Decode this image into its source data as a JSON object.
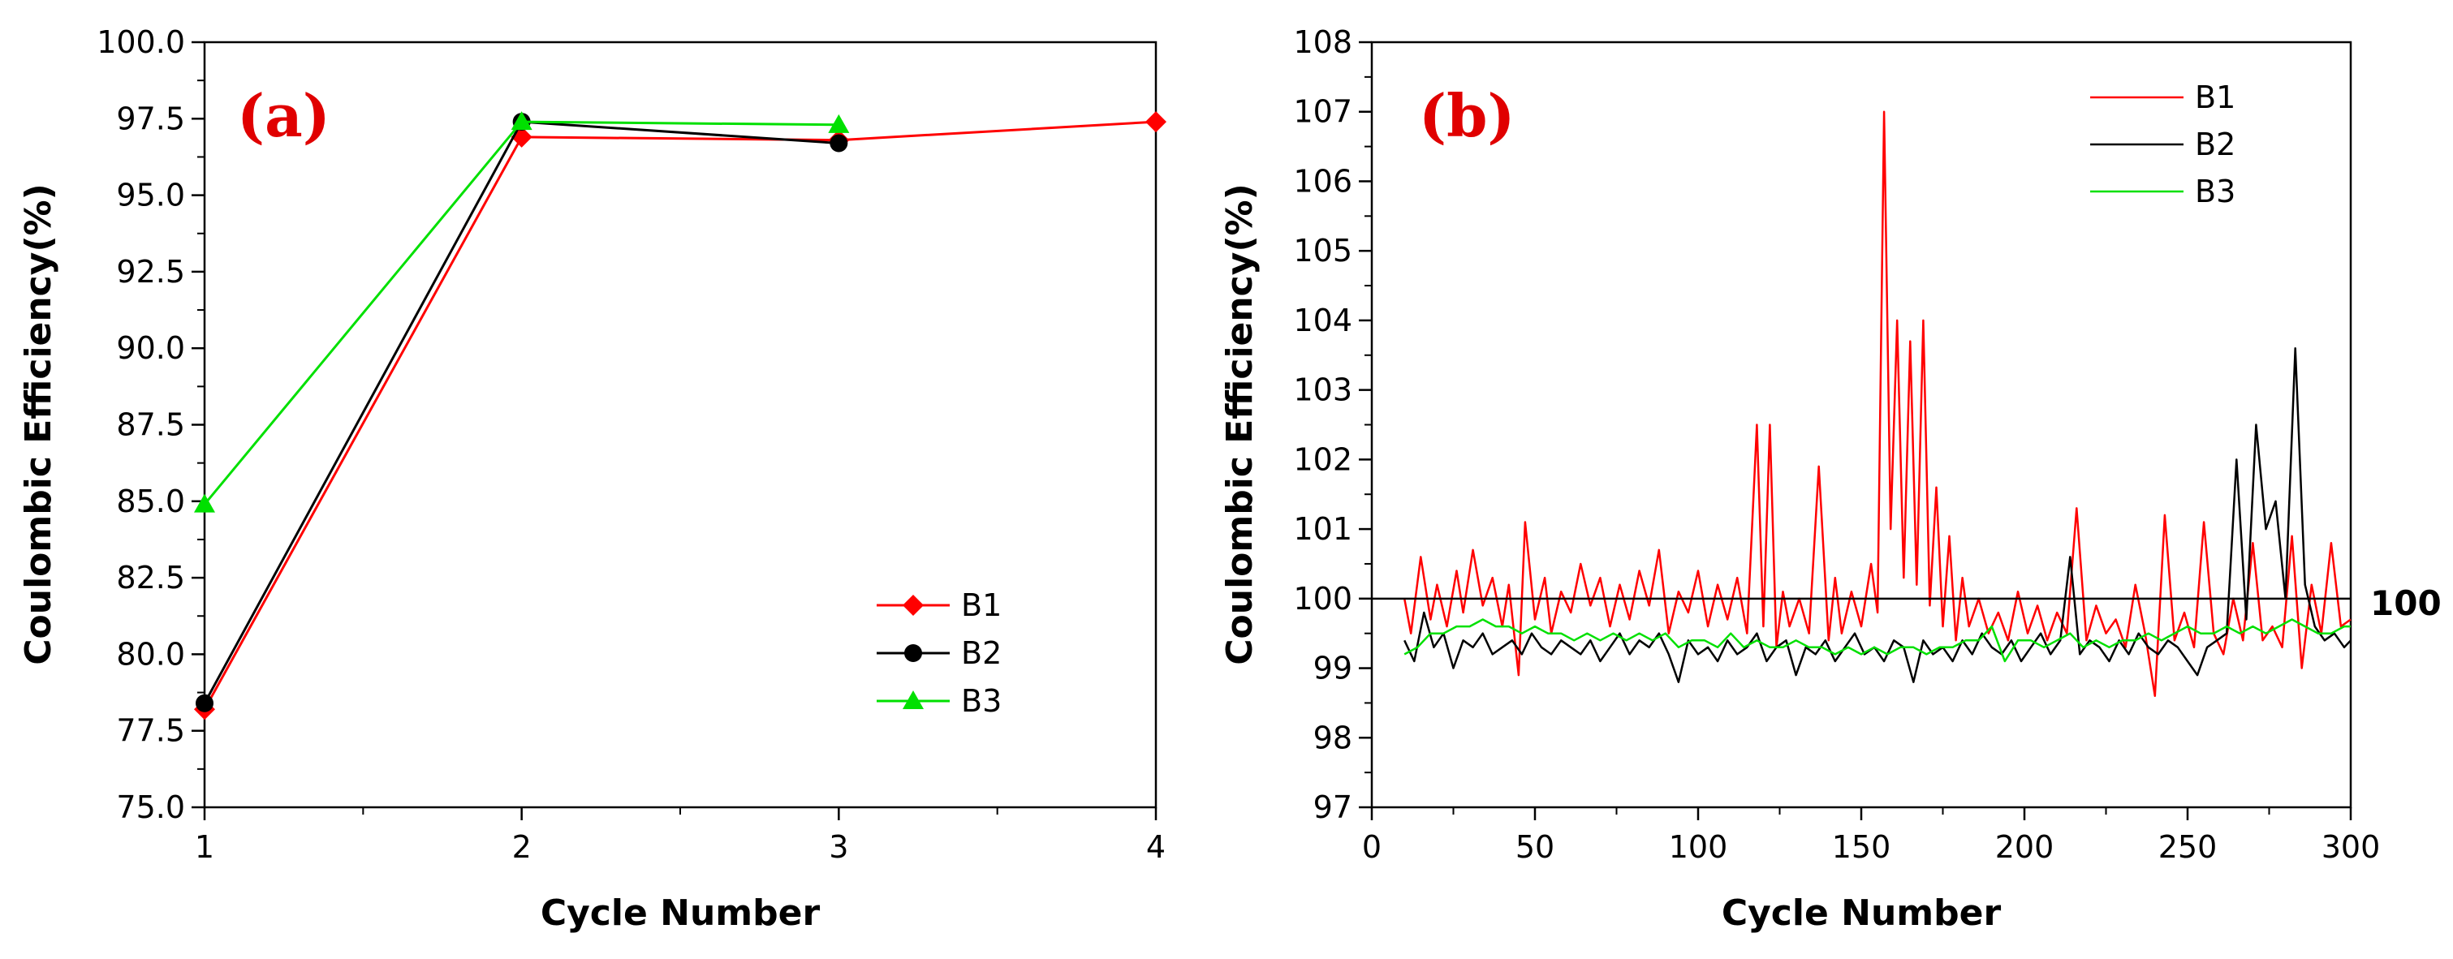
{
  "chart_data": [
    {
      "type": "line",
      "panel_label": "(a)",
      "xlabel": "Cycle Number",
      "ylabel": "Coulombic Efficiency(%)",
      "xlim": [
        1,
        4
      ],
      "ylim": [
        75,
        100
      ],
      "x_ticks": [
        "1",
        "2",
        "3",
        "4"
      ],
      "y_ticks": [
        "75.0",
        "77.5",
        "80.0",
        "82.5",
        "85.0",
        "87.5",
        "90.0",
        "92.5",
        "95.0",
        "97.5",
        "100.0"
      ],
      "grid": false,
      "legend_position": "bottom-right",
      "series": [
        {
          "name": "B1",
          "color": "#ff0000",
          "marker": "diamond",
          "x": [
            1,
            2,
            3,
            4
          ],
          "values": [
            78.2,
            96.9,
            96.8,
            97.4
          ]
        },
        {
          "name": "B2",
          "color": "#000000",
          "marker": "circle",
          "x": [
            1,
            2,
            3
          ],
          "values": [
            78.4,
            97.4,
            96.7
          ]
        },
        {
          "name": "B3",
          "color": "#00e000",
          "marker": "triangle",
          "x": [
            1,
            2,
            3
          ],
          "values": [
            84.9,
            97.4,
            97.3
          ]
        }
      ]
    },
    {
      "type": "line",
      "panel_label": "(b)",
      "xlabel": "Cycle Number",
      "ylabel": "Coulombic Efficiency(%)",
      "xlim": [
        0,
        300
      ],
      "ylim": [
        97,
        108
      ],
      "x_ticks": [
        "0",
        "50",
        "100",
        "150",
        "200",
        "250",
        "300"
      ],
      "y_ticks": [
        "97",
        "98",
        "99",
        "100",
        "101",
        "102",
        "103",
        "104",
        "105",
        "106",
        "107",
        "108"
      ],
      "grid": false,
      "legend_position": "top-right",
      "reference_line": {
        "y": 100,
        "label": "100"
      },
      "series": [
        {
          "name": "B1",
          "color": "#ff0000",
          "x": [
            10,
            12,
            15,
            18,
            20,
            23,
            26,
            28,
            31,
            34,
            37,
            40,
            42,
            45,
            47,
            50,
            53,
            55,
            58,
            61,
            64,
            67,
            70,
            73,
            76,
            79,
            82,
            85,
            88,
            91,
            94,
            97,
            100,
            103,
            106,
            109,
            112,
            115,
            118,
            120,
            122,
            124,
            126,
            128,
            131,
            134,
            137,
            140,
            142,
            144,
            147,
            150,
            153,
            155,
            157,
            159,
            161,
            163,
            165,
            167,
            169,
            171,
            173,
            175,
            177,
            179,
            181,
            183,
            186,
            189,
            192,
            195,
            198,
            201,
            204,
            207,
            210,
            213,
            216,
            219,
            222,
            225,
            228,
            231,
            234,
            237,
            240,
            243,
            246,
            249,
            252,
            255,
            258,
            261,
            264,
            267,
            270,
            273,
            276,
            279,
            282,
            285,
            288,
            291,
            294,
            297,
            300
          ],
          "values": [
            100.0,
            99.5,
            100.6,
            99.7,
            100.2,
            99.6,
            100.4,
            99.8,
            100.7,
            99.9,
            100.3,
            99.6,
            100.2,
            98.9,
            101.1,
            99.7,
            100.3,
            99.5,
            100.1,
            99.8,
            100.5,
            99.9,
            100.3,
            99.6,
            100.2,
            99.7,
            100.4,
            99.9,
            100.7,
            99.5,
            100.1,
            99.8,
            100.4,
            99.6,
            100.2,
            99.7,
            100.3,
            99.5,
            102.5,
            99.6,
            102.5,
            99.3,
            100.1,
            99.6,
            100.0,
            99.5,
            101.9,
            99.4,
            100.3,
            99.5,
            100.1,
            99.6,
            100.5,
            99.8,
            107.0,
            101.0,
            104.0,
            100.3,
            103.7,
            100.2,
            104.0,
            99.9,
            101.6,
            99.6,
            100.9,
            99.4,
            100.3,
            99.6,
            100.0,
            99.5,
            99.8,
            99.4,
            100.1,
            99.5,
            99.9,
            99.4,
            99.8,
            99.5,
            101.3,
            99.4,
            99.9,
            99.5,
            99.7,
            99.3,
            100.2,
            99.5,
            98.6,
            101.2,
            99.4,
            99.8,
            99.3,
            101.1,
            99.5,
            99.2,
            100.0,
            99.4,
            100.8,
            99.4,
            99.6,
            99.3,
            100.9,
            99.0,
            100.2,
            99.5,
            100.8,
            99.6,
            99.7
          ]
        },
        {
          "name": "B2",
          "color": "#000000",
          "x": [
            10,
            13,
            16,
            19,
            22,
            25,
            28,
            31,
            34,
            37,
            40,
            43,
            46,
            49,
            52,
            55,
            58,
            61,
            64,
            67,
            70,
            73,
            76,
            79,
            82,
            85,
            88,
            91,
            94,
            97,
            100,
            103,
            106,
            109,
            112,
            115,
            118,
            121,
            124,
            127,
            130,
            133,
            136,
            139,
            142,
            145,
            148,
            151,
            154,
            157,
            160,
            163,
            166,
            169,
            172,
            175,
            178,
            181,
            184,
            187,
            190,
            193,
            196,
            199,
            202,
            205,
            208,
            211,
            214,
            217,
            220,
            223,
            226,
            229,
            232,
            235,
            238,
            241,
            244,
            247,
            250,
            253,
            256,
            259,
            262,
            265,
            268,
            271,
            274,
            277,
            280,
            283,
            286,
            289,
            292,
            295,
            298,
            300
          ],
          "values": [
            99.4,
            99.1,
            99.8,
            99.3,
            99.5,
            99.0,
            99.4,
            99.3,
            99.5,
            99.2,
            99.3,
            99.4,
            99.2,
            99.5,
            99.3,
            99.2,
            99.4,
            99.3,
            99.2,
            99.4,
            99.1,
            99.3,
            99.5,
            99.2,
            99.4,
            99.3,
            99.5,
            99.2,
            98.8,
            99.4,
            99.2,
            99.3,
            99.1,
            99.4,
            99.2,
            99.3,
            99.5,
            99.1,
            99.3,
            99.4,
            98.9,
            99.3,
            99.2,
            99.4,
            99.1,
            99.3,
            99.5,
            99.2,
            99.3,
            99.1,
            99.4,
            99.3,
            98.8,
            99.4,
            99.2,
            99.3,
            99.1,
            99.4,
            99.2,
            99.5,
            99.3,
            99.2,
            99.4,
            99.1,
            99.3,
            99.5,
            99.2,
            99.4,
            100.6,
            99.2,
            99.4,
            99.3,
            99.1,
            99.4,
            99.2,
            99.5,
            99.3,
            99.2,
            99.4,
            99.3,
            99.1,
            98.9,
            99.3,
            99.4,
            99.5,
            102.0,
            99.7,
            102.5,
            101.0,
            101.4,
            100.0,
            103.6,
            100.2,
            99.6,
            99.4,
            99.5,
            99.3,
            99.4
          ]
        },
        {
          "name": "B3",
          "color": "#00e000",
          "x": [
            10,
            14,
            18,
            22,
            26,
            30,
            34,
            38,
            42,
            46,
            50,
            54,
            58,
            62,
            66,
            70,
            74,
            78,
            82,
            86,
            90,
            94,
            98,
            102,
            106,
            110,
            114,
            118,
            122,
            126,
            130,
            134,
            138,
            142,
            146,
            150,
            154,
            158,
            162,
            166,
            170,
            174,
            178,
            182,
            186,
            190,
            194,
            198,
            202,
            206,
            210,
            214,
            218,
            222,
            226,
            230,
            234,
            238,
            242,
            246,
            250,
            254,
            258,
            262,
            266,
            270,
            274,
            278,
            282,
            286,
            290,
            294,
            298,
            300
          ],
          "values": [
            99.2,
            99.3,
            99.5,
            99.5,
            99.6,
            99.6,
            99.7,
            99.6,
            99.6,
            99.5,
            99.6,
            99.5,
            99.5,
            99.4,
            99.5,
            99.4,
            99.5,
            99.4,
            99.5,
            99.4,
            99.5,
            99.3,
            99.4,
            99.4,
            99.3,
            99.5,
            99.3,
            99.4,
            99.3,
            99.3,
            99.4,
            99.3,
            99.3,
            99.2,
            99.3,
            99.2,
            99.3,
            99.2,
            99.3,
            99.3,
            99.2,
            99.3,
            99.3,
            99.4,
            99.4,
            99.6,
            99.1,
            99.4,
            99.4,
            99.3,
            99.4,
            99.5,
            99.3,
            99.4,
            99.3,
            99.4,
            99.4,
            99.5,
            99.4,
            99.5,
            99.6,
            99.5,
            99.5,
            99.6,
            99.5,
            99.6,
            99.5,
            99.6,
            99.7,
            99.6,
            99.5,
            99.5,
            99.6,
            99.6
          ]
        }
      ]
    }
  ]
}
